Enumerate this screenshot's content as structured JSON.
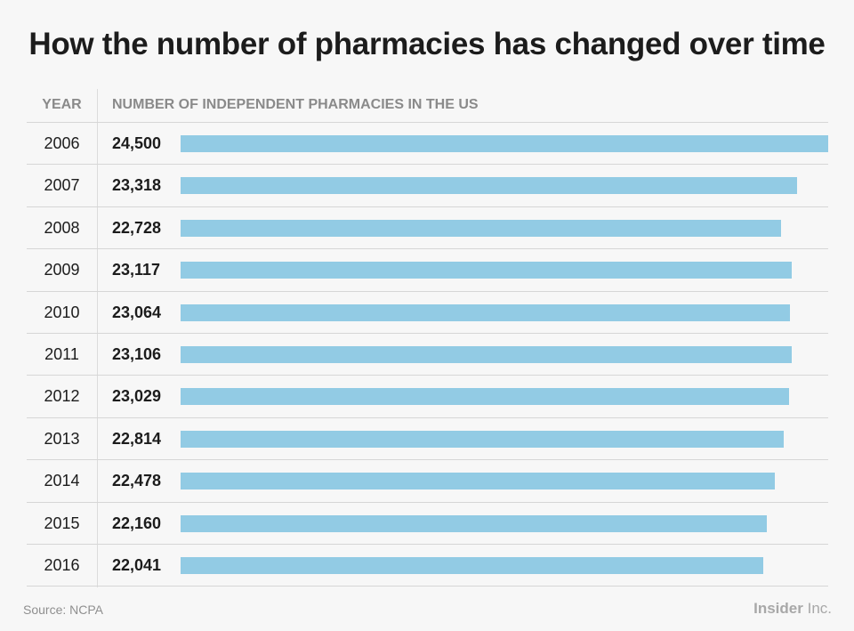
{
  "title": "How the number of pharmacies has changed over time",
  "header": {
    "year_label": "YEAR",
    "value_label": "NUMBER OF INDEPENDENT PHARMACIES IN THE US"
  },
  "source": "Source: NCPA",
  "logo": {
    "bold": "Insider",
    "light": " Inc."
  },
  "colors": {
    "bar": "#92cbe4",
    "text": "#1c1c1c",
    "muted": "#8a8a8a"
  },
  "chart_data": {
    "type": "bar",
    "orientation": "horizontal",
    "title": "How the number of pharmacies has changed over time",
    "categories": [
      "2006",
      "2007",
      "2008",
      "2009",
      "2010",
      "2011",
      "2012",
      "2013",
      "2014",
      "2015",
      "2016"
    ],
    "values": [
      24500,
      23318,
      22728,
      23117,
      23064,
      23106,
      23029,
      22814,
      22478,
      22160,
      22041
    ],
    "value_labels": [
      "24,500",
      "23,318",
      "22,728",
      "23,117",
      "23,064",
      "23,106",
      "23,029",
      "22,814",
      "22,478",
      "22,160",
      "22,041"
    ],
    "xlabel": "NUMBER OF INDEPENDENT PHARMACIES IN THE US",
    "ylabel": "YEAR",
    "grid": false
  }
}
